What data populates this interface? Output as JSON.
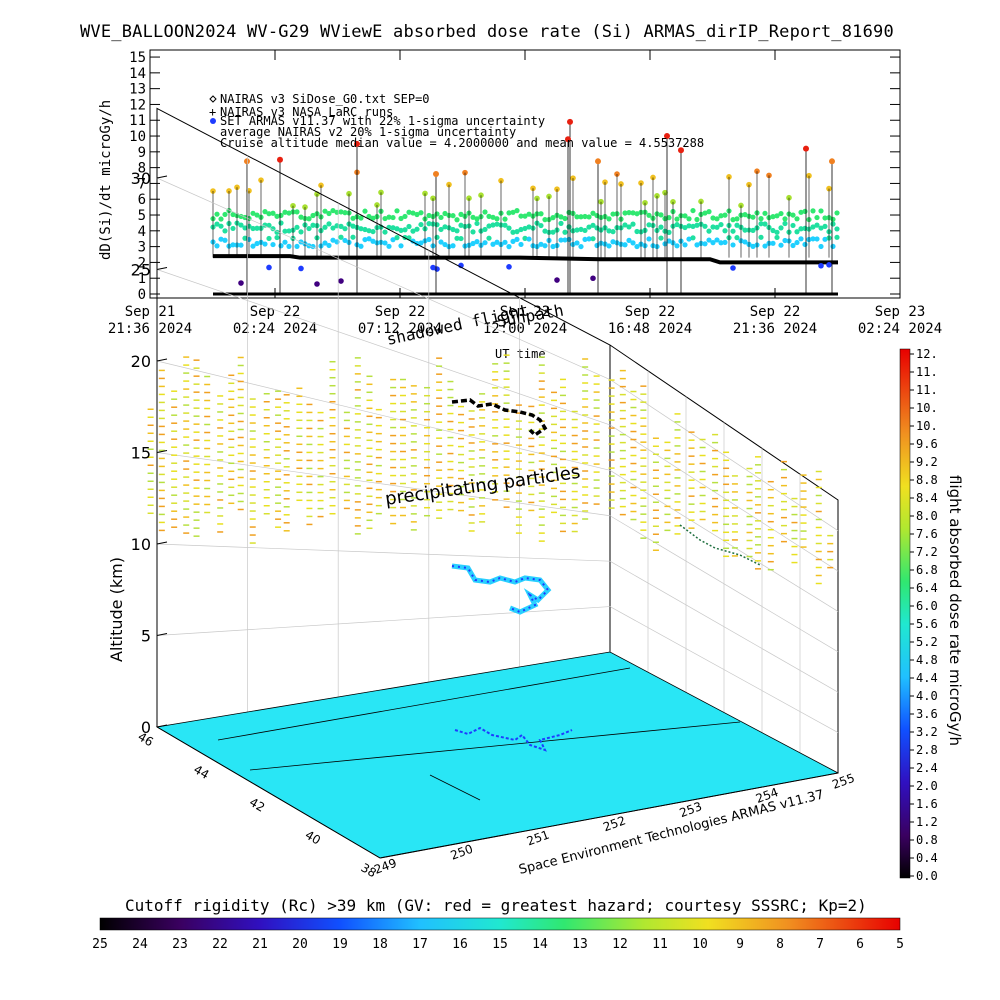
{
  "title": "WVE_BALLOON2024 WV-G29 WViewE absorbed dose rate (Si) ARMAS_dirIP_Report_81690",
  "top_chart": {
    "ylabel": "dD(Si)/dt microGy/h",
    "xlabel": "UT time",
    "yticks": [
      "0",
      "1",
      "2",
      "3",
      "4",
      "5",
      "6",
      "7",
      "8",
      "9",
      "10",
      "11",
      "12",
      "13",
      "14",
      "15"
    ],
    "xticks": [
      {
        "line1": "Sep 21",
        "line2": "21:36 2024"
      },
      {
        "line1": "Sep 22",
        "line2": "02:24 2024"
      },
      {
        "line1": "Sep 22",
        "line2": "07:12 2024"
      },
      {
        "line1": "Sep 22",
        "line2": "12:00 2024"
      },
      {
        "line1": "Sep 22",
        "line2": "16:48 2024"
      },
      {
        "line1": "Sep 22",
        "line2": "21:36 2024"
      },
      {
        "line1": "Sep 23",
        "line2": "02:24 2024"
      }
    ],
    "legend": [
      "NAIRAS v3 SiDose_G0.txt SEP=0",
      "NAIRAS v3 NASA LaRC runs",
      "SET ARMAS v11.37 with 22% 1-sigma uncertainty",
      "average NAIRAS v2 20% 1-sigma uncertainty",
      "Cruise altitude median value = 4.2000000 and mean value = 4.5537288"
    ],
    "overlay_labels": [
      "shadowed flight",
      "Sunpath",
      "2024",
      "22"
    ]
  },
  "plot3d": {
    "zlabel": "Altitude (km)",
    "zticks": [
      "0",
      "5",
      "10",
      "15",
      "20",
      "25",
      "30"
    ],
    "lat_ticks": [
      "46",
      "44",
      "42",
      "40",
      "38"
    ],
    "lon_ticks": [
      "249",
      "250",
      "251",
      "252",
      "253",
      "254",
      "255"
    ],
    "annotation": "precipitating particles",
    "credit": "Space Environment Technologies ARMAS v11.37"
  },
  "right_colorbar": {
    "label": "flight absorbed dose rate microGy/h",
    "ticks": [
      "12.",
      "11.",
      "11.",
      "10.",
      "10.",
      "9.6",
      "9.2",
      "8.8",
      "8.4",
      "8.0",
      "7.6",
      "7.2",
      "6.8",
      "6.4",
      "6.0",
      "5.6",
      "5.2",
      "4.8",
      "4.4",
      "4.0",
      "3.6",
      "3.2",
      "2.8",
      "2.4",
      "2.0",
      "1.6",
      "1.2",
      "0.8",
      "0.4",
      "0.0"
    ]
  },
  "bottom_colorbar": {
    "caption": "Cutoff rigidity (Rc) >39 km (GV: red = greatest hazard; courtesy SSSRC; Kp=2)",
    "ticks": [
      "25",
      "24",
      "23",
      "22",
      "21",
      "20",
      "19",
      "18",
      "17",
      "16",
      "15",
      "14",
      "13",
      "12",
      "11",
      "10",
      "9",
      "8",
      "7",
      "6",
      "5"
    ]
  },
  "colors": {
    "black": "#000000",
    "cyan_surface": "#29e6f5",
    "blue": "#1e3cff",
    "green": "#2ee88a",
    "yellow": "#e8e020",
    "orange": "#f08020",
    "red": "#e82010"
  },
  "chart_data": {
    "type": "scatter",
    "title": "WVE_BALLOON2024 WV-G29 WViewE absorbed dose rate (Si) ARMAS_dirIP_Report_81690",
    "xlabel": "UT time",
    "ylabel": "dD(Si)/dt microGy/h",
    "ylim": [
      0,
      15
    ],
    "xlim": [
      "Sep 21 21:36 2024",
      "Sep 23 02:24 2024"
    ],
    "series": [
      {
        "name": "NAIRAS v3 NASA LaRC runs",
        "values_description_free": true,
        "x": [
          "Sep 21 23:00",
          "Sep 22 03:00",
          "Sep 22 10:00",
          "Sep 22 14:00",
          "Sep 22 19:00",
          "Sep 22 22:00"
        ],
        "y": [
          2.4,
          2.4,
          2.3,
          2.3,
          2.2,
          2.0
        ]
      },
      {
        "name": "SET ARMAS v11.37 with 22% 1-sigma uncertainty",
        "median": 4.2,
        "mean": 4.5537288
      }
    ]
  }
}
